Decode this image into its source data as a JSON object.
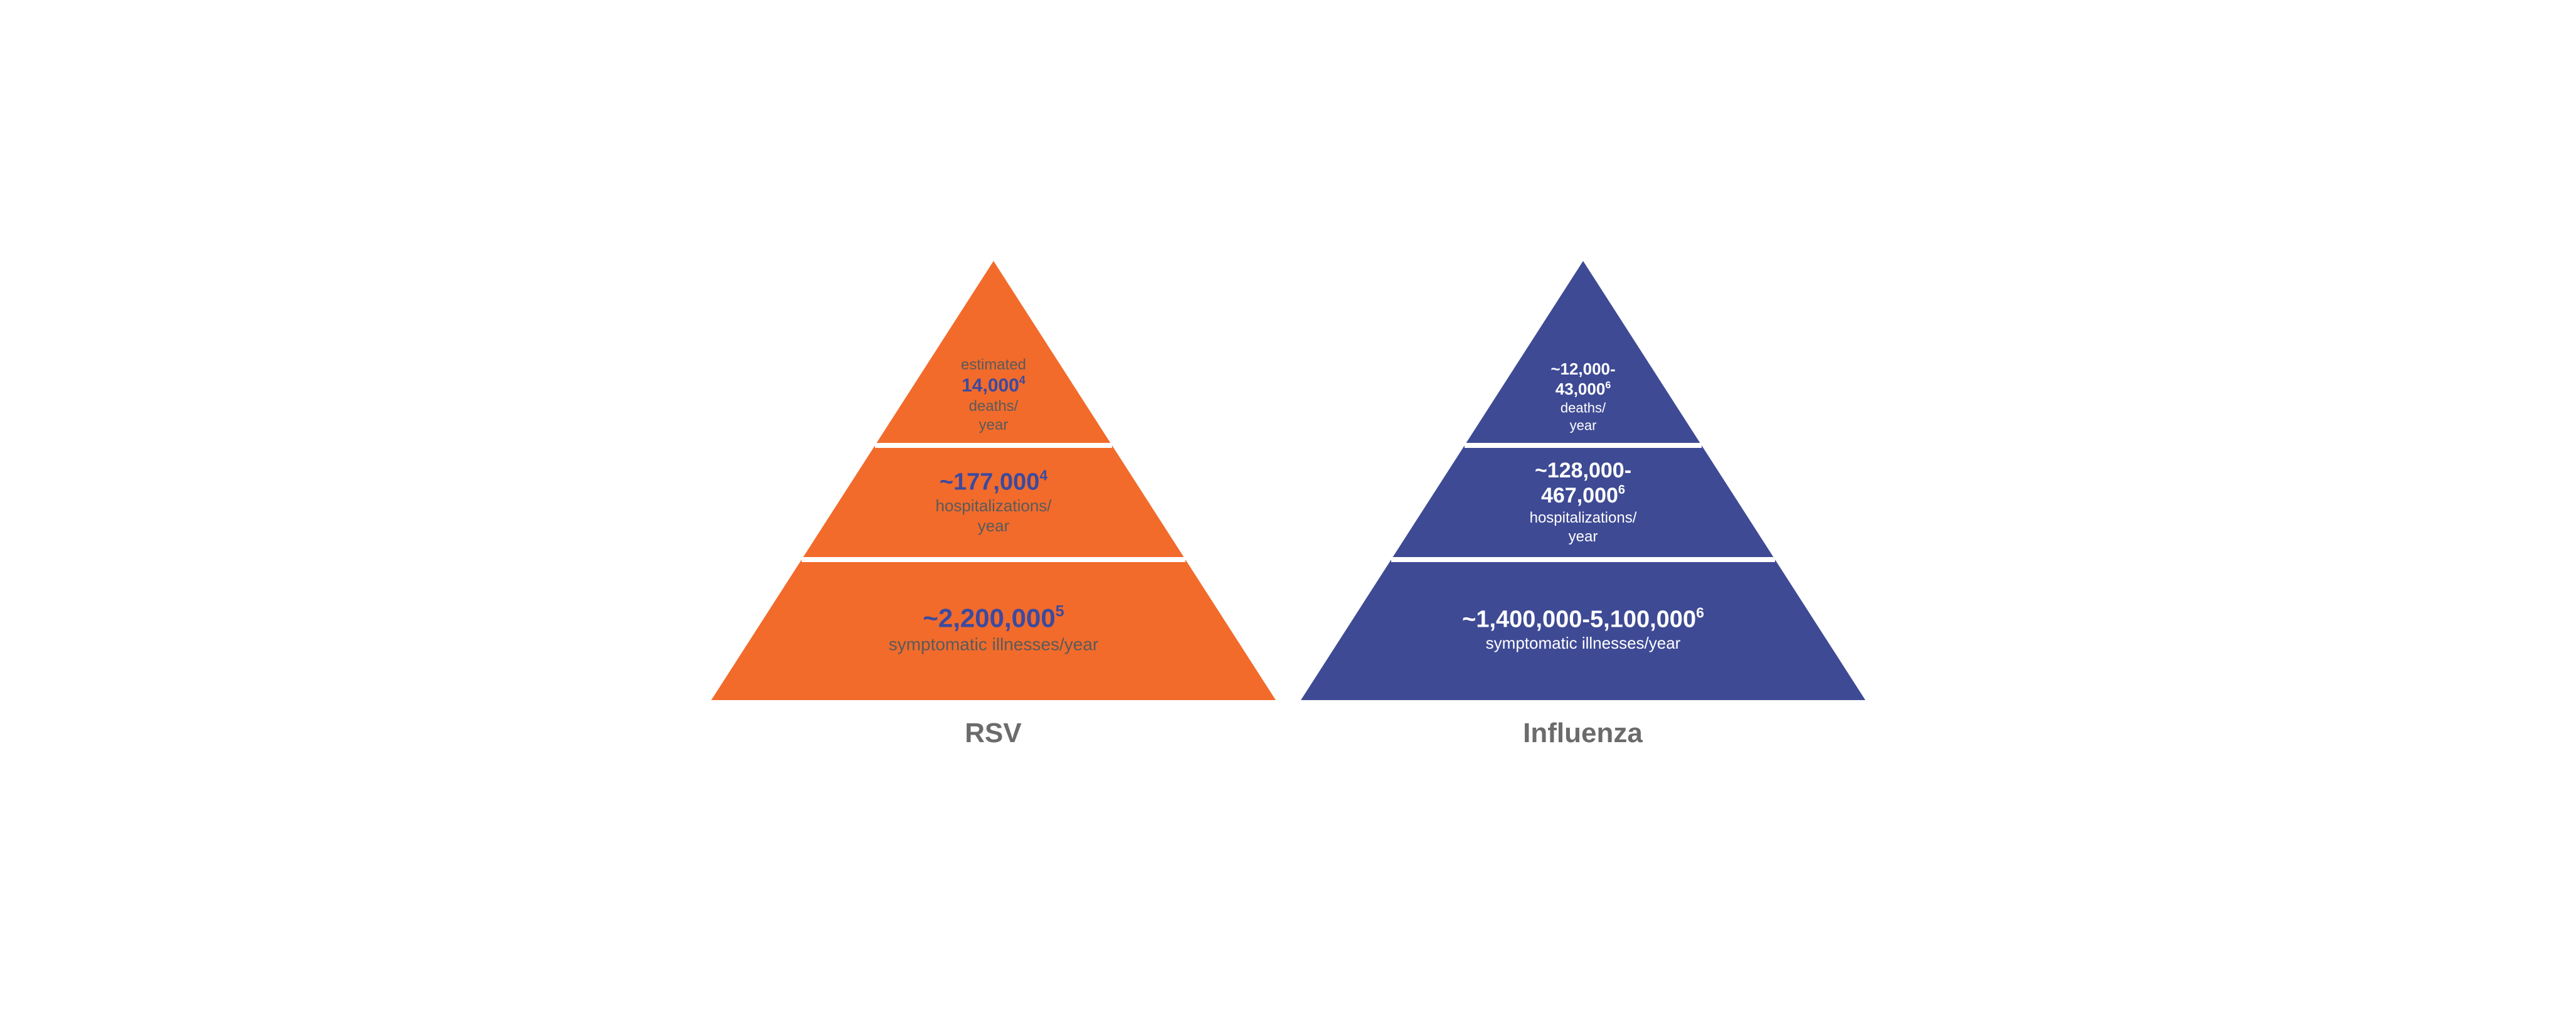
{
  "chart": {
    "type": "pyramid-comparison",
    "divider_color": "#ffffff",
    "divider_width": 8,
    "pyramid_width": 900,
    "pyramid_height": 700,
    "tier_breaks": [
      0.42,
      0.68
    ],
    "pyramids": [
      {
        "id": "rsv",
        "caption": "RSV",
        "fill_color": "#f26b2b",
        "value_color": "#3b4a9f",
        "label_color": "#5a5a5a",
        "tiers": [
          {
            "pre_label": "estimated",
            "value": "14,000",
            "superscript": "4",
            "label_lines": [
              "deaths/",
              "year"
            ],
            "value_fontsize": 30,
            "label_fontsize": 24
          },
          {
            "value": "~177,000",
            "superscript": "4",
            "label_lines": [
              "hospitalizations/",
              "year"
            ],
            "value_fontsize": 38,
            "label_fontsize": 26
          },
          {
            "value": "~2,200,000",
            "superscript": "5",
            "label_lines": [
              "symptomatic illnesses/year"
            ],
            "value_fontsize": 42,
            "label_fontsize": 28
          }
        ]
      },
      {
        "id": "influenza",
        "caption": "Influenza",
        "fill_color": "#3e4a94",
        "value_color": "#ffffff",
        "label_color": "#ffffff",
        "tiers": [
          {
            "value_lines": [
              "~12,000-",
              "43,000"
            ],
            "superscript": "6",
            "label_lines": [
              "deaths/",
              "year"
            ],
            "value_fontsize": 26,
            "label_fontsize": 22
          },
          {
            "value_lines": [
              "~128,000-",
              "467,000"
            ],
            "superscript": "6",
            "label_lines": [
              "hospitalizations/",
              "year"
            ],
            "value_fontsize": 34,
            "label_fontsize": 24
          },
          {
            "value": "~1,400,000-5,100,000",
            "superscript": "6",
            "label_lines": [
              "symptomatic illnesses/year"
            ],
            "value_fontsize": 38,
            "label_fontsize": 26
          }
        ]
      }
    ]
  }
}
